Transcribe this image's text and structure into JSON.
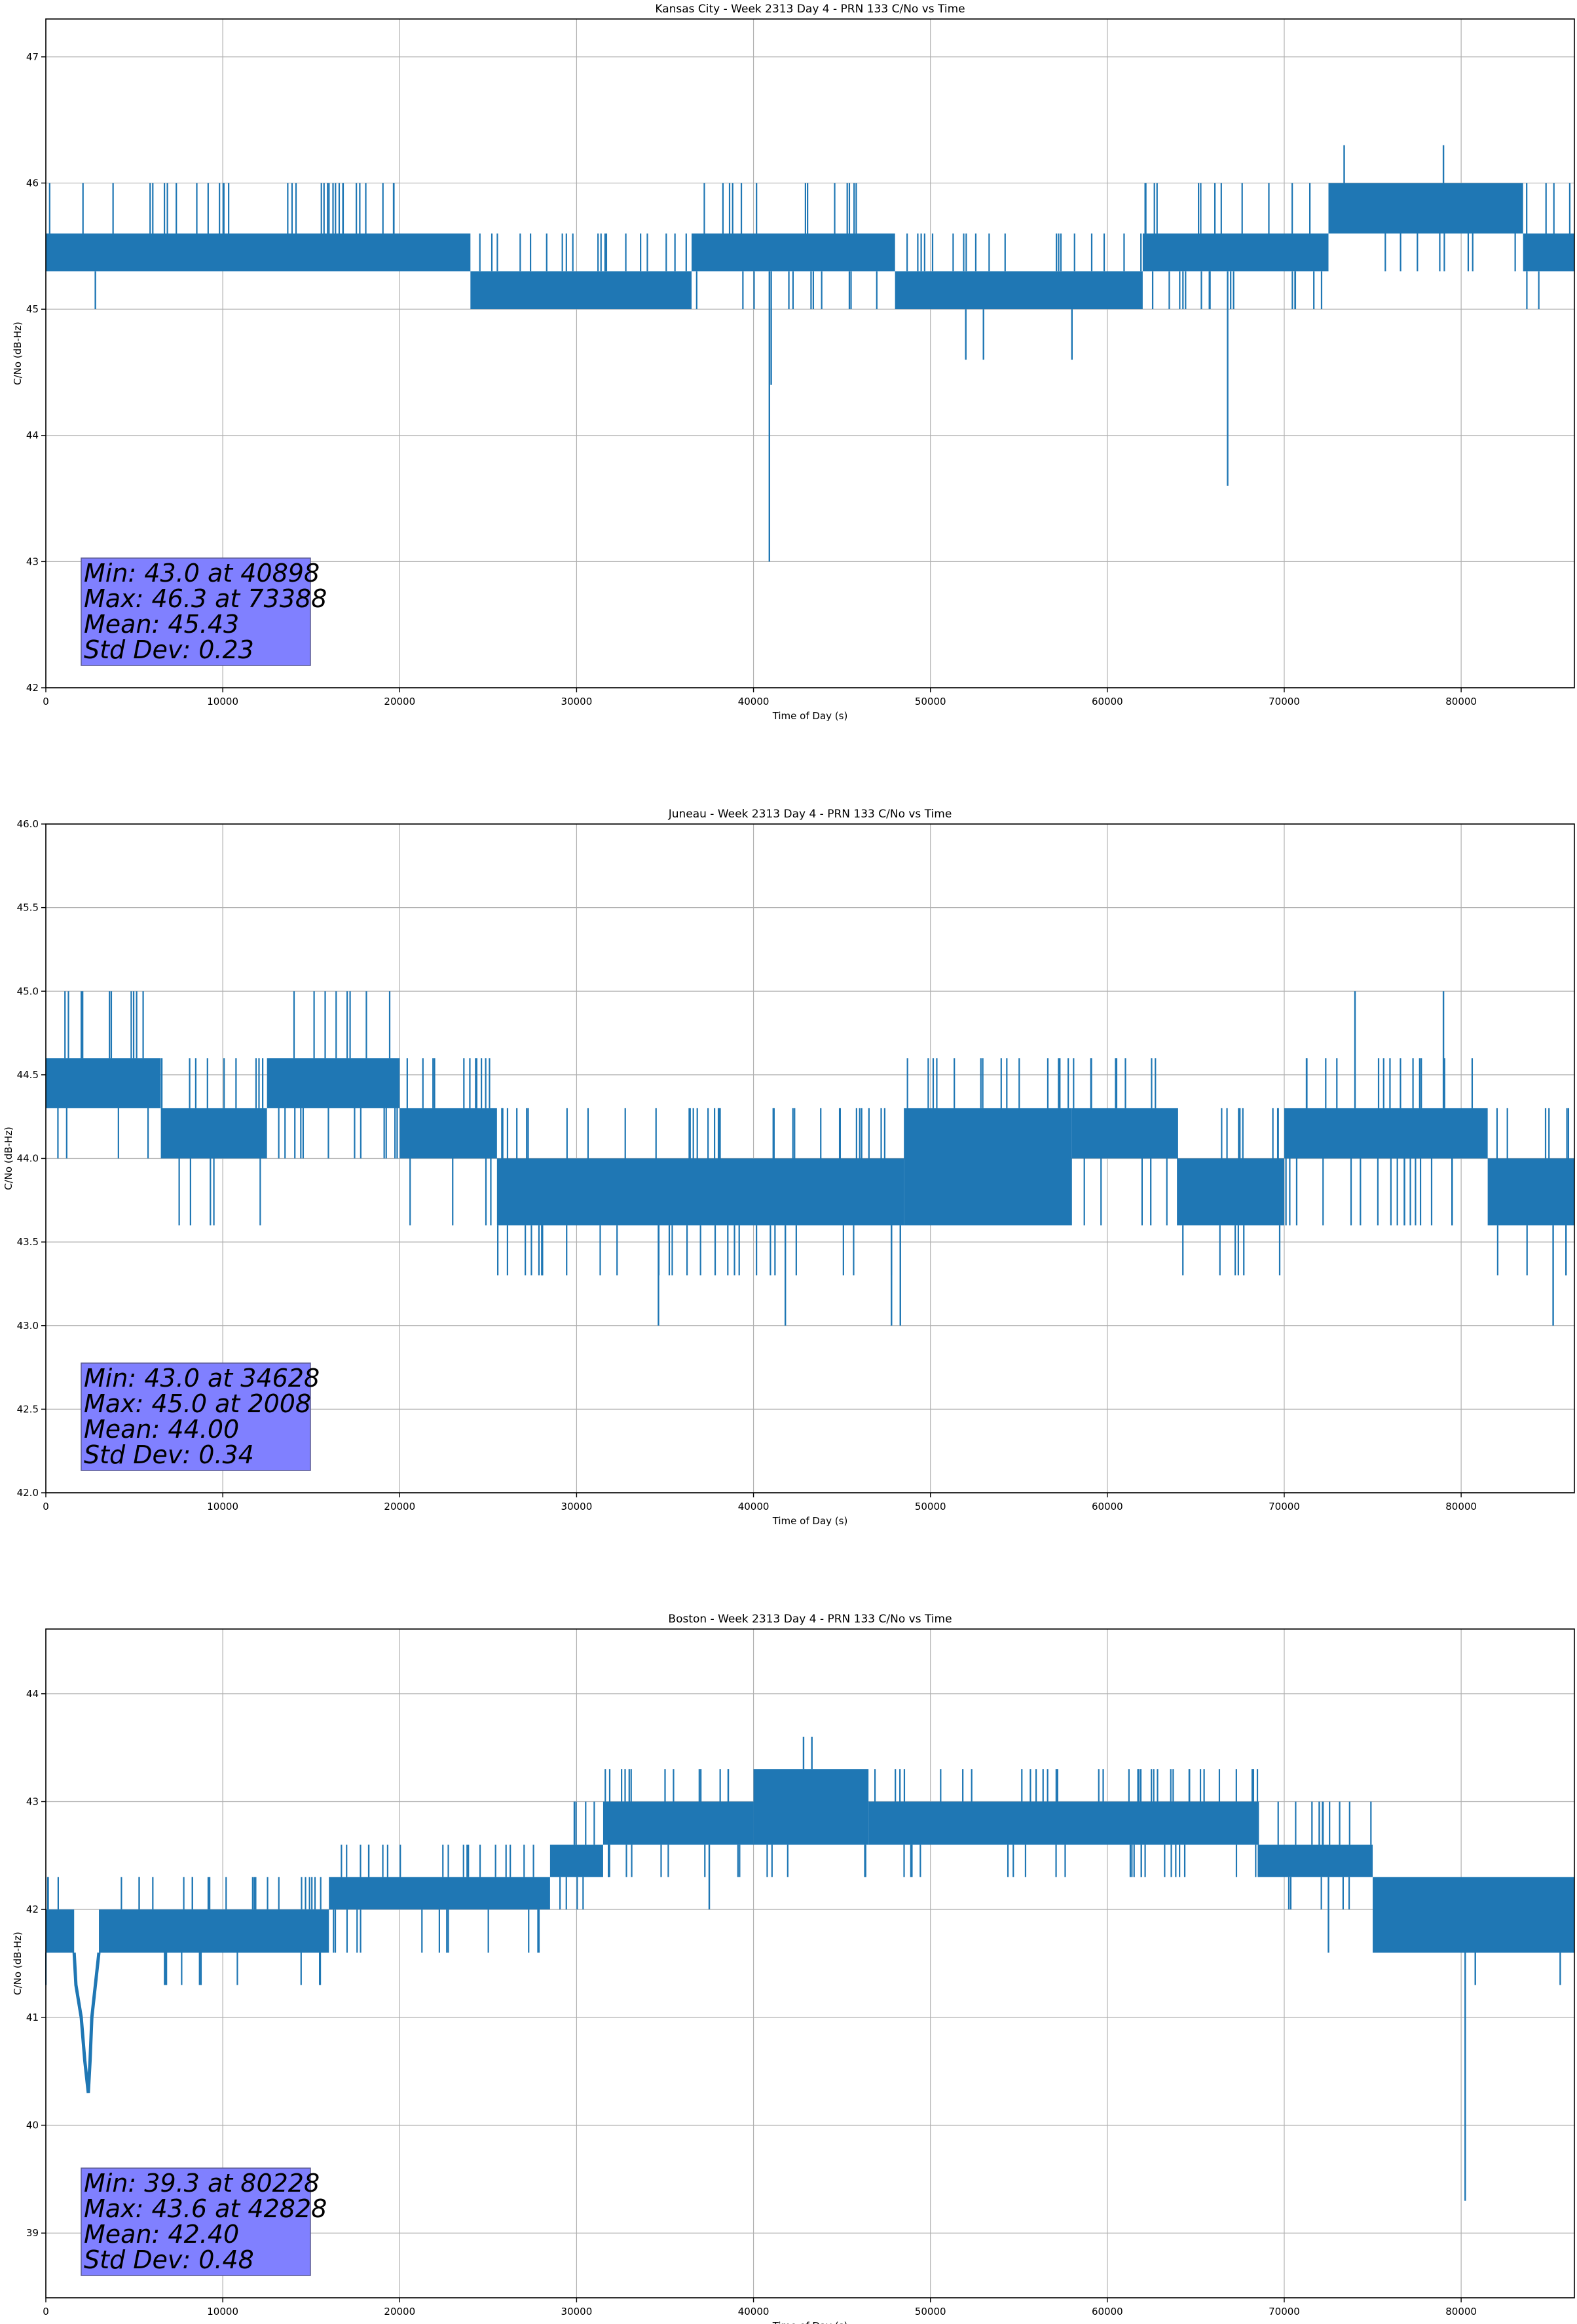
{
  "chart_data": [
    {
      "type": "line",
      "title": "Kansas City - Week 2313 Day 4 - PRN 133 C/No vs Time",
      "xlabel": "Time of Day (s)",
      "ylabel": "C/No (dB-Hz)",
      "xlim": [
        0,
        86400
      ],
      "ylim": [
        42,
        47.3
      ],
      "xticks": [
        0,
        10000,
        20000,
        30000,
        40000,
        50000,
        60000,
        70000,
        80000
      ],
      "yticks": [
        42,
        43,
        44,
        45,
        46,
        47
      ],
      "grid": true,
      "line_color": "#1f77b4",
      "stats_box": {
        "lines": [
          "Min: 43.0 at 40898",
          "Max: 46.3 at 73388",
          "Mean: 45.43",
          "Std Dev: 0.23"
        ],
        "background": "#8080ff"
      },
      "band_segments": [
        {
          "x": [
            0,
            24000
          ],
          "low": 45.3,
          "high": 45.6,
          "spike_hi": 46.0,
          "spike_lo": 45.3
        },
        {
          "x": [
            24000,
            36500
          ],
          "low": 45.0,
          "high": 45.3,
          "spike_hi": 45.6,
          "spike_lo": 45.0
        },
        {
          "x": [
            36500,
            48000
          ],
          "low": 45.3,
          "high": 45.6,
          "spike_hi": 46.0,
          "spike_lo": 45.0
        },
        {
          "x": [
            48000,
            62000
          ],
          "low": 45.0,
          "high": 45.3,
          "spike_hi": 45.6,
          "spike_lo": 45.0
        },
        {
          "x": [
            62000,
            72500
          ],
          "low": 45.3,
          "high": 45.6,
          "spike_hi": 46.0,
          "spike_lo": 45.0
        },
        {
          "x": [
            72500,
            83500
          ],
          "low": 45.6,
          "high": 46.0,
          "spike_hi": 46.0,
          "spike_lo": 45.3
        },
        {
          "x": [
            83500,
            86400
          ],
          "low": 45.3,
          "high": 45.6,
          "spike_hi": 46.0,
          "spike_lo": 45.0
        }
      ],
      "outliers": [
        {
          "x": 2800,
          "y": 45.0
        },
        {
          "x": 40898,
          "y": 43.0
        },
        {
          "x": 41000,
          "y": 44.4
        },
        {
          "x": 52000,
          "y": 44.6
        },
        {
          "x": 53000,
          "y": 44.6
        },
        {
          "x": 58000,
          "y": 44.6
        },
        {
          "x": 66800,
          "y": 43.6
        },
        {
          "x": 73388,
          "y": 46.3
        },
        {
          "x": 79000,
          "y": 46.3
        }
      ]
    },
    {
      "type": "line",
      "title": "Juneau - Week 2313 Day 4 - PRN 133 C/No vs Time",
      "xlabel": "Time of Day (s)",
      "ylabel": "C/No (dB-Hz)",
      "xlim": [
        0,
        86400
      ],
      "ylim": [
        42,
        46
      ],
      "xticks": [
        0,
        10000,
        20000,
        30000,
        40000,
        50000,
        60000,
        70000,
        80000
      ],
      "yticks": [
        42.0,
        42.5,
        43.0,
        43.5,
        44.0,
        44.5,
        45.0,
        45.5,
        46.0
      ],
      "grid": true,
      "line_color": "#1f77b4",
      "stats_box": {
        "lines": [
          "Min: 43.0 at 34628",
          "Max: 45.0 at 2008",
          "Mean: 44.00",
          "Std Dev: 0.34"
        ],
        "background": "#8080ff"
      },
      "band_segments": [
        {
          "x": [
            0,
            6500
          ],
          "low": 44.3,
          "high": 44.6,
          "spike_hi": 45.0,
          "spike_lo": 44.0
        },
        {
          "x": [
            6500,
            12500
          ],
          "low": 44.0,
          "high": 44.3,
          "spike_hi": 44.6,
          "spike_lo": 43.6
        },
        {
          "x": [
            12500,
            20000
          ],
          "low": 44.3,
          "high": 44.6,
          "spike_hi": 45.0,
          "spike_lo": 44.0
        },
        {
          "x": [
            20000,
            25500
          ],
          "low": 44.0,
          "high": 44.3,
          "spike_hi": 44.6,
          "spike_lo": 43.6
        },
        {
          "x": [
            25500,
            48500
          ],
          "low": 43.6,
          "high": 44.0,
          "spike_hi": 44.3,
          "spike_lo": 43.3
        },
        {
          "x": [
            48500,
            58000
          ],
          "low": 43.6,
          "high": 44.3,
          "spike_hi": 44.6,
          "spike_lo": 43.6
        },
        {
          "x": [
            58000,
            64000
          ],
          "low": 44.0,
          "high": 44.3,
          "spike_hi": 44.6,
          "spike_lo": 43.6
        },
        {
          "x": [
            64000,
            70000
          ],
          "low": 43.6,
          "high": 44.0,
          "spike_hi": 44.3,
          "spike_lo": 43.3
        },
        {
          "x": [
            70000,
            81500
          ],
          "low": 44.0,
          "high": 44.3,
          "spike_hi": 44.6,
          "spike_lo": 43.6
        },
        {
          "x": [
            81500,
            86400
          ],
          "low": 43.6,
          "high": 44.0,
          "spike_hi": 44.3,
          "spike_lo": 43.3
        }
      ],
      "outliers": [
        {
          "x": 2008,
          "y": 45.0
        },
        {
          "x": 34628,
          "y": 43.0
        },
        {
          "x": 41800,
          "y": 43.0
        },
        {
          "x": 47800,
          "y": 43.0
        },
        {
          "x": 48300,
          "y": 43.0
        },
        {
          "x": 74000,
          "y": 45.0
        },
        {
          "x": 79000,
          "y": 45.0
        },
        {
          "x": 85200,
          "y": 43.0
        }
      ]
    },
    {
      "type": "line",
      "title": "Boston - Week 2313 Day 4 - PRN 133 C/No vs Time",
      "xlabel": "Time of Day (s)",
      "ylabel": "C/No (dB-Hz)",
      "xlim": [
        0,
        86400
      ],
      "ylim": [
        38.4,
        44.6
      ],
      "xticks": [
        0,
        10000,
        20000,
        30000,
        40000,
        50000,
        60000,
        70000,
        80000
      ],
      "yticks": [
        39,
        40,
        41,
        42,
        43,
        44
      ],
      "grid": true,
      "line_color": "#1f77b4",
      "stats_box": {
        "lines": [
          "Min: 39.3 at 80228",
          "Max: 43.6 at 42828",
          "Mean: 42.40",
          "Std Dev: 0.48"
        ],
        "background": "#8080ff"
      },
      "band_segments": [
        {
          "x": [
            0,
            1600
          ],
          "low": 41.6,
          "high": 42.0,
          "spike_hi": 42.3,
          "spike_lo": 41.3
        },
        {
          "x": [
            3000,
            16000
          ],
          "low": 41.6,
          "high": 42.0,
          "spike_hi": 42.3,
          "spike_lo": 41.3
        },
        {
          "x": [
            16000,
            28500
          ],
          "low": 42.0,
          "high": 42.3,
          "spike_hi": 42.6,
          "spike_lo": 41.6
        },
        {
          "x": [
            28500,
            31500
          ],
          "low": 42.3,
          "high": 42.6,
          "spike_hi": 43.0,
          "spike_lo": 42.0
        },
        {
          "x": [
            31500,
            40000
          ],
          "low": 42.6,
          "high": 43.0,
          "spike_hi": 43.3,
          "spike_lo": 42.3
        },
        {
          "x": [
            40000,
            46500
          ],
          "low": 42.6,
          "high": 43.3,
          "spike_hi": 43.3,
          "spike_lo": 42.3
        },
        {
          "x": [
            46500,
            68500
          ],
          "low": 42.6,
          "high": 43.0,
          "spike_hi": 43.3,
          "spike_lo": 42.3
        },
        {
          "x": [
            68500,
            75000
          ],
          "low": 42.3,
          "high": 42.6,
          "spike_hi": 43.0,
          "spike_lo": 42.0
        },
        {
          "x": [
            75000,
            86400
          ],
          "low": 41.6,
          "high": 42.3,
          "spike_hi": 42.3,
          "spike_lo": 41.6
        }
      ],
      "dip": [
        {
          "x": 1600,
          "y": 41.6
        },
        {
          "x": 1700,
          "y": 41.3
        },
        {
          "x": 2000,
          "y": 41.0
        },
        {
          "x": 2200,
          "y": 40.6
        },
        {
          "x": 2400,
          "y": 40.3
        },
        {
          "x": 2500,
          "y": 40.6
        },
        {
          "x": 2600,
          "y": 41.0
        },
        {
          "x": 2800,
          "y": 41.3
        },
        {
          "x": 3000,
          "y": 41.6
        }
      ],
      "outliers": [
        {
          "x": 37500,
          "y": 42.0
        },
        {
          "x": 42828,
          "y": 43.6
        },
        {
          "x": 43300,
          "y": 43.6
        },
        {
          "x": 72500,
          "y": 41.6
        },
        {
          "x": 80228,
          "y": 39.3
        },
        {
          "x": 80800,
          "y": 41.3
        },
        {
          "x": 85600,
          "y": 41.3
        }
      ]
    }
  ]
}
